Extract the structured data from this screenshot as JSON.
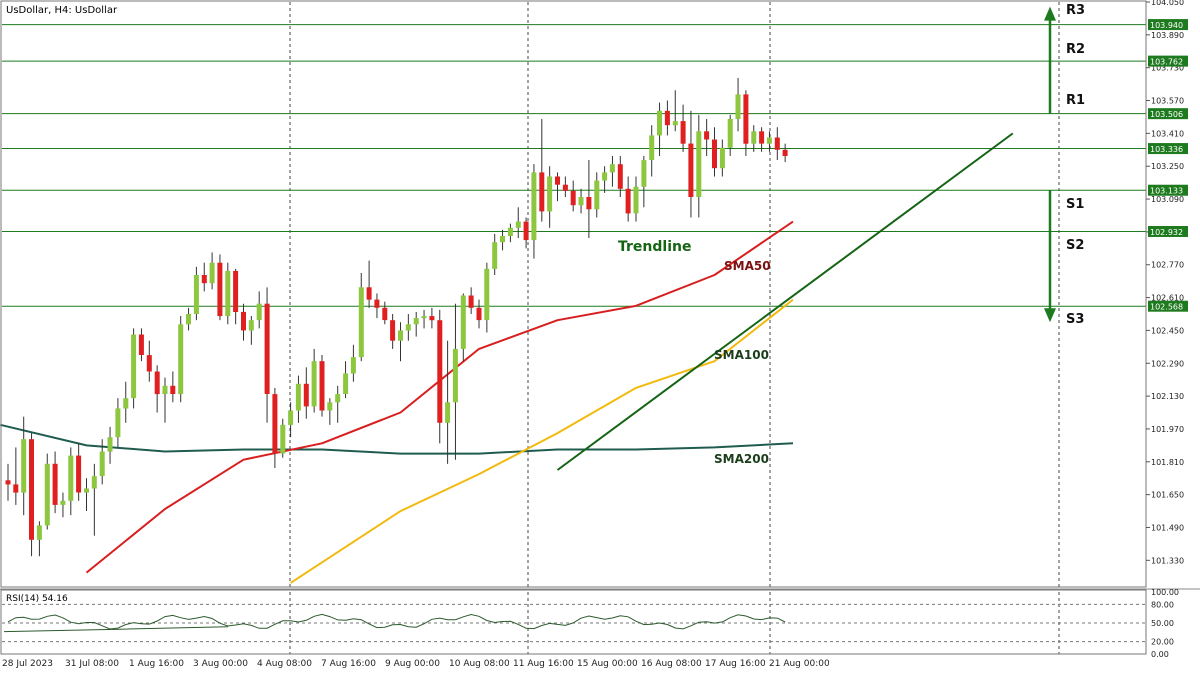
{
  "header": {
    "title": "UsDollar, H4:  UsDollar"
  },
  "rsi_label": "RSI(14) 54.16",
  "colors": {
    "bull": "#8DC63F",
    "bear": "#E02020",
    "sma50": "#D81E1E",
    "sma100": "#F2B90F",
    "sma200": "#1F5C4F",
    "levels": "#1E7A1E",
    "trend": "#146414",
    "label_bg": "#1E7A1E"
  },
  "chart_data": {
    "type": "candlestick",
    "symbol": "UsDollar",
    "timeframe": "H4",
    "ylim": [
      101.2,
      104.05
    ],
    "y_ticks": [
      "104.050",
      "103.890",
      "103.730",
      "103.570",
      "103.410",
      "103.250",
      "103.090",
      "102.930",
      "102.770",
      "102.610",
      "102.450",
      "102.290",
      "102.130",
      "101.970",
      "101.810",
      "101.650",
      "101.490",
      "101.330"
    ],
    "x_labels": [
      "28 Jul 2023",
      "31 Jul 08:00",
      "1 Aug 16:00",
      "3 Aug 00:00",
      "4 Aug 08:00",
      "7 Aug 16:00",
      "9 Aug 00:00",
      "10 Aug 08:00",
      "11 Aug 16:00",
      "15 Aug 00:00",
      "16 Aug 08:00",
      "17 Aug 16:00",
      "21 Aug 00:00"
    ],
    "levels": [
      {
        "name": "R3",
        "value": 103.94,
        "label": "103.940"
      },
      {
        "name": "R2",
        "value": 103.762,
        "label": "103.762"
      },
      {
        "name": "R1",
        "value": 103.506,
        "label": "103.506"
      },
      {
        "name": "current",
        "value": 103.336,
        "label": "103.336"
      },
      {
        "name": "S1",
        "value": 103.133,
        "label": "103.133"
      },
      {
        "name": "S2",
        "value": 102.932,
        "label": "102.932"
      },
      {
        "name": "S3",
        "value": 102.568,
        "label": "102.568"
      }
    ],
    "annotations": {
      "trendline": "Trendline",
      "sma50": "SMA50",
      "sma100": "SMA100",
      "sma200": "SMA200",
      "r_labels": [
        "R3",
        "R2",
        "R1"
      ],
      "s_labels": [
        "S1",
        "S2",
        "S3"
      ]
    },
    "trendline": {
      "start": [
        70,
        101.77
      ],
      "end": [
        128,
        103.41
      ]
    },
    "candles": [
      [
        101.72,
        101.8,
        101.62,
        101.7
      ],
      [
        101.7,
        101.88,
        101.6,
        101.66
      ],
      [
        101.66,
        102.03,
        101.55,
        101.92
      ],
      [
        101.92,
        101.95,
        101.35,
        101.43
      ],
      [
        101.43,
        101.52,
        101.35,
        101.5
      ],
      [
        101.5,
        101.85,
        101.48,
        101.8
      ],
      [
        101.8,
        101.86,
        101.56,
        101.6
      ],
      [
        101.6,
        101.66,
        101.54,
        101.62
      ],
      [
        101.62,
        101.88,
        101.55,
        101.84
      ],
      [
        101.84,
        101.9,
        101.62,
        101.66
      ],
      [
        101.66,
        101.73,
        101.57,
        101.68
      ],
      [
        101.68,
        101.8,
        101.45,
        101.74
      ],
      [
        101.74,
        101.92,
        101.7,
        101.86
      ],
      [
        101.86,
        101.98,
        101.8,
        101.93
      ],
      [
        101.93,
        102.12,
        101.88,
        102.07
      ],
      [
        102.07,
        102.2,
        102.0,
        102.12
      ],
      [
        102.12,
        102.46,
        102.07,
        102.43
      ],
      [
        102.43,
        102.46,
        102.3,
        102.33
      ],
      [
        102.33,
        102.4,
        102.2,
        102.25
      ],
      [
        102.25,
        102.28,
        102.05,
        102.14
      ],
      [
        102.14,
        102.22,
        102.0,
        102.18
      ],
      [
        102.18,
        102.25,
        102.1,
        102.14
      ],
      [
        102.14,
        102.52,
        102.1,
        102.48
      ],
      [
        102.48,
        102.56,
        102.45,
        102.53
      ],
      [
        102.53,
        102.76,
        102.5,
        102.72
      ],
      [
        102.72,
        102.78,
        102.64,
        102.68
      ],
      [
        102.68,
        102.83,
        102.65,
        102.78
      ],
      [
        102.78,
        102.82,
        102.5,
        102.52
      ],
      [
        102.52,
        102.78,
        102.48,
        102.74
      ],
      [
        102.74,
        102.75,
        102.48,
        102.54
      ],
      [
        102.54,
        102.58,
        102.4,
        102.45
      ],
      [
        102.45,
        102.52,
        102.38,
        102.5
      ],
      [
        102.5,
        102.64,
        102.46,
        102.58
      ],
      [
        102.58,
        102.66,
        102.0,
        102.14
      ],
      [
        102.14,
        102.17,
        101.78,
        101.85
      ],
      [
        101.85,
        102.02,
        101.83,
        101.99
      ],
      [
        101.99,
        102.1,
        101.93,
        102.06
      ],
      [
        102.06,
        102.23,
        102.0,
        102.19
      ],
      [
        102.19,
        102.27,
        102.02,
        102.08
      ],
      [
        102.08,
        102.36,
        102.05,
        102.3
      ],
      [
        102.3,
        102.33,
        102.03,
        102.06
      ],
      [
        102.06,
        102.12,
        101.99,
        102.1
      ],
      [
        102.1,
        102.18,
        102.0,
        102.14
      ],
      [
        102.14,
        102.3,
        102.12,
        102.24
      ],
      [
        102.24,
        102.38,
        102.2,
        102.32
      ],
      [
        102.32,
        102.73,
        102.3,
        102.66
      ],
      [
        102.66,
        102.79,
        102.56,
        102.6
      ],
      [
        102.6,
        102.63,
        102.51,
        102.56
      ],
      [
        102.56,
        102.59,
        102.48,
        102.5
      ],
      [
        102.5,
        102.53,
        102.36,
        102.4
      ],
      [
        102.4,
        102.49,
        102.3,
        102.45
      ],
      [
        102.45,
        102.53,
        102.4,
        102.48
      ],
      [
        102.48,
        102.54,
        102.42,
        102.51
      ],
      [
        102.51,
        102.55,
        102.46,
        102.52
      ],
      [
        102.52,
        102.56,
        102.46,
        102.5
      ],
      [
        102.5,
        102.55,
        101.9,
        102.0
      ],
      [
        102.0,
        102.4,
        101.8,
        102.1
      ],
      [
        102.1,
        102.58,
        101.82,
        102.36
      ],
      [
        102.36,
        102.63,
        102.3,
        102.62
      ],
      [
        102.62,
        102.66,
        102.53,
        102.56
      ],
      [
        102.56,
        102.6,
        102.46,
        102.5
      ],
      [
        102.5,
        102.78,
        102.44,
        102.75
      ],
      [
        102.75,
        102.92,
        102.72,
        102.88
      ],
      [
        102.88,
        102.94,
        102.84,
        102.91
      ],
      [
        102.91,
        102.97,
        102.88,
        102.95
      ],
      [
        102.95,
        103.05,
        102.9,
        102.98
      ],
      [
        102.98,
        103.0,
        102.85,
        102.89
      ],
      [
        102.89,
        103.26,
        102.8,
        103.22
      ],
      [
        103.22,
        103.48,
        102.98,
        103.03
      ],
      [
        103.03,
        103.25,
        102.95,
        103.2
      ],
      [
        103.2,
        103.22,
        103.08,
        103.16
      ],
      [
        103.16,
        103.2,
        103.1,
        103.13
      ],
      [
        103.13,
        103.18,
        103.03,
        103.06
      ],
      [
        103.06,
        103.14,
        103.02,
        103.1
      ],
      [
        103.1,
        103.28,
        102.9,
        103.04
      ],
      [
        103.04,
        103.22,
        103.0,
        103.18
      ],
      [
        103.18,
        103.25,
        103.12,
        103.22
      ],
      [
        103.22,
        103.3,
        103.15,
        103.26
      ],
      [
        103.26,
        103.3,
        103.1,
        103.14
      ],
      [
        103.14,
        103.2,
        102.98,
        103.02
      ],
      [
        103.02,
        103.2,
        102.98,
        103.15
      ],
      [
        103.15,
        103.3,
        103.05,
        103.28
      ],
      [
        103.28,
        103.45,
        103.2,
        103.4
      ],
      [
        103.4,
        103.56,
        103.3,
        103.52
      ],
      [
        103.52,
        103.57,
        103.4,
        103.45
      ],
      [
        103.45,
        103.62,
        103.42,
        103.47
      ],
      [
        103.47,
        103.55,
        103.32,
        103.36
      ],
      [
        103.36,
        103.52,
        103.0,
        103.1
      ],
      [
        103.1,
        103.5,
        103.0,
        103.42
      ],
      [
        103.42,
        103.48,
        103.3,
        103.38
      ],
      [
        103.38,
        103.44,
        103.2,
        103.24
      ],
      [
        103.24,
        103.38,
        103.2,
        103.34
      ],
      [
        103.34,
        103.5,
        103.3,
        103.48
      ],
      [
        103.48,
        103.68,
        103.42,
        103.6
      ],
      [
        103.6,
        103.62,
        103.3,
        103.36
      ],
      [
        103.36,
        103.45,
        103.32,
        103.42
      ],
      [
        103.42,
        103.44,
        103.32,
        103.36
      ],
      [
        103.36,
        103.42,
        103.32,
        103.39
      ],
      [
        103.39,
        103.44,
        103.28,
        103.33
      ],
      [
        103.33,
        103.36,
        103.27,
        103.3
      ]
    ],
    "sma50": [
      [
        10,
        101.27
      ],
      [
        20,
        101.58
      ],
      [
        30,
        101.82
      ],
      [
        40,
        101.9
      ],
      [
        50,
        102.05
      ],
      [
        60,
        102.36
      ],
      [
        70,
        102.5
      ],
      [
        80,
        102.57
      ],
      [
        90,
        102.72
      ],
      [
        100,
        102.98
      ]
    ],
    "sma100": [
      [
        36,
        101.22
      ],
      [
        50,
        101.57
      ],
      [
        60,
        101.75
      ],
      [
        70,
        101.95
      ],
      [
        80,
        102.17
      ],
      [
        90,
        102.3
      ],
      [
        100,
        102.6
      ]
    ],
    "sma200": [
      [
        -1,
        101.99
      ],
      [
        10,
        101.89
      ],
      [
        20,
        101.86
      ],
      [
        30,
        101.87
      ],
      [
        40,
        101.87
      ],
      [
        50,
        101.85
      ],
      [
        60,
        101.85
      ],
      [
        70,
        101.87
      ],
      [
        80,
        101.87
      ],
      [
        90,
        101.88
      ],
      [
        100,
        101.9
      ]
    ],
    "rsi": {
      "ylim": [
        0,
        100
      ],
      "ticks": [
        "100.00",
        "80.00",
        "50.00",
        "20.00",
        "0.00"
      ],
      "levels": [
        80,
        50,
        20
      ]
    }
  }
}
